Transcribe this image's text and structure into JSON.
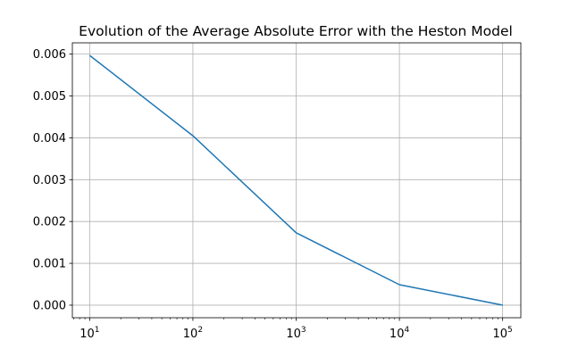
{
  "chart_data": {
    "type": "line",
    "title": "Evolution of the Average Absolute Error with the Heston Model",
    "xlabel": "",
    "ylabel": "",
    "xscale": "log",
    "x": [
      10,
      100,
      1000,
      10000,
      100000
    ],
    "series": [
      {
        "values": [
          0.00597,
          0.00405,
          0.00173,
          0.00049,
          0.0
        ],
        "color": "#1f77b4"
      }
    ],
    "xlim": [
      6.8,
      150000
    ],
    "ylim": [
      -0.0003,
      0.00627
    ],
    "grid": true,
    "x_ticks": [
      {
        "value": 10,
        "base": "10",
        "exp": "1"
      },
      {
        "value": 100,
        "base": "10",
        "exp": "2"
      },
      {
        "value": 1000,
        "base": "10",
        "exp": "3"
      },
      {
        "value": 10000,
        "base": "10",
        "exp": "4"
      },
      {
        "value": 100000,
        "base": "10",
        "exp": "5"
      }
    ],
    "y_ticks": [
      {
        "value": 0.0,
        "label": "0.000"
      },
      {
        "value": 0.001,
        "label": "0.001"
      },
      {
        "value": 0.002,
        "label": "0.002"
      },
      {
        "value": 0.003,
        "label": "0.003"
      },
      {
        "value": 0.004,
        "label": "0.004"
      },
      {
        "value": 0.005,
        "label": "0.005"
      },
      {
        "value": 0.006,
        "label": "0.006"
      }
    ],
    "colors": {
      "line": "#1f77b4",
      "grid": "#b0b0b0",
      "axes": "#000000"
    }
  }
}
